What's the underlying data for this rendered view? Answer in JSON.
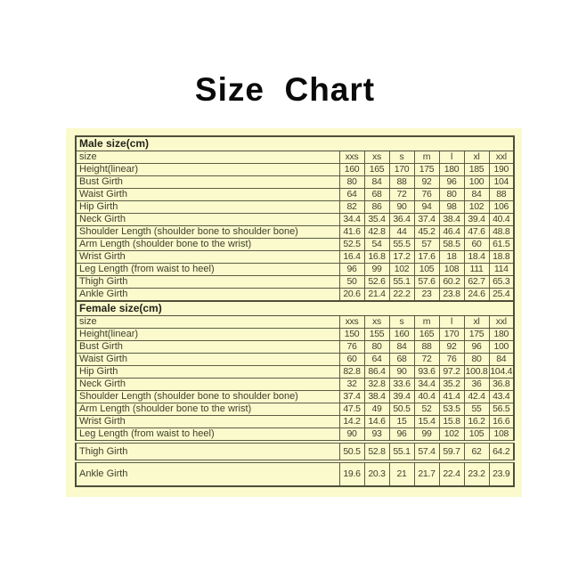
{
  "title": "Size  Chart",
  "colors": {
    "page_background": "#ffffff",
    "table_background": "#fafacd",
    "border": "#5c5c45",
    "text": "#40402c",
    "title_text": "#0a0a0a"
  },
  "chart_data": [
    {
      "type": "table",
      "title": "Male size(cm)",
      "size_column_label": "size",
      "columns": [
        "xxs",
        "xs",
        "s",
        "m",
        "l",
        "xl",
        "xxl"
      ],
      "rows": [
        {
          "label": "Height(linear)",
          "values": [
            "160",
            "165",
            "170",
            "175",
            "180",
            "185",
            "190"
          ]
        },
        {
          "label": "Bust Girth",
          "values": [
            "80",
            "84",
            "88",
            "92",
            "96",
            "100",
            "104"
          ]
        },
        {
          "label": "Waist Girth",
          "values": [
            "64",
            "68",
            "72",
            "76",
            "80",
            "84",
            "88"
          ]
        },
        {
          "label": "Hip Girth",
          "values": [
            "82",
            "86",
            "90",
            "94",
            "98",
            "102",
            "106"
          ]
        },
        {
          "label": "Neck Girth",
          "values": [
            "34.4",
            "35.4",
            "36.4",
            "37.4",
            "38.4",
            "39.4",
            "40.4"
          ]
        },
        {
          "label": "Shoulder Length (shoulder bone to shoulder bone)",
          "values": [
            "41.6",
            "42.8",
            "44",
            "45.2",
            "46.4",
            "47.6",
            "48.8"
          ]
        },
        {
          "label": "Arm Length (shoulder bone to the wrist)",
          "values": [
            "52.5",
            "54",
            "55.5",
            "57",
            "58.5",
            "60",
            "61.5"
          ]
        },
        {
          "label": "Wrist Girth",
          "values": [
            "16.4",
            "16.8",
            "17.2",
            "17.6",
            "18",
            "18.4",
            "18.8"
          ]
        },
        {
          "label": "Leg Length (from waist to heel)",
          "values": [
            "96",
            "99",
            "102",
            "105",
            "108",
            "111",
            "114"
          ]
        },
        {
          "label": "Thigh Girth",
          "values": [
            "50",
            "52.6",
            "55.1",
            "57.6",
            "60.2",
            "62.7",
            "65.3"
          ]
        },
        {
          "label": "Ankle Girth",
          "values": [
            "20.6",
            "21.4",
            "22.2",
            "23",
            "23.8",
            "24.6",
            "25.4"
          ]
        }
      ]
    },
    {
      "type": "table",
      "title": "Female size(cm)",
      "size_column_label": "size",
      "columns": [
        "xxs",
        "xs",
        "s",
        "m",
        "l",
        "xl",
        "xxl"
      ],
      "rows": [
        {
          "label": "Height(linear)",
          "values": [
            "150",
            "155",
            "160",
            "165",
            "170",
            "175",
            "180"
          ]
        },
        {
          "label": "Bust Girth",
          "values": [
            "76",
            "80",
            "84",
            "88",
            "92",
            "96",
            "100"
          ]
        },
        {
          "label": "Waist Girth",
          "values": [
            "60",
            "64",
            "68",
            "72",
            "76",
            "80",
            "84"
          ]
        },
        {
          "label": "Hip Girth",
          "values": [
            "82.8",
            "86.4",
            "90",
            "93.6",
            "97.2",
            "100.8",
            "104.4"
          ]
        },
        {
          "label": "Neck Girth",
          "values": [
            "32",
            "32.8",
            "33.6",
            "34.4",
            "35.2",
            "36",
            "36.8"
          ]
        },
        {
          "label": "Shoulder Length (shoulder bone to shoulder bone)",
          "values": [
            "37.4",
            "38.4",
            "39.4",
            "40.4",
            "41.4",
            "42.4",
            "43.4"
          ]
        },
        {
          "label": "Arm Length (shoulder bone to the wrist)",
          "values": [
            "47.5",
            "49",
            "50.5",
            "52",
            "53.5",
            "55",
            "56.5"
          ]
        },
        {
          "label": "Wrist Girth",
          "values": [
            "14.2",
            "14.6",
            "15",
            "15.4",
            "15.8",
            "16.2",
            "16.6"
          ]
        },
        {
          "label": "Leg Length (from waist to heel)",
          "values": [
            "90",
            "93",
            "96",
            "99",
            "102",
            "105",
            "108"
          ]
        },
        {
          "label": "Thigh Girth",
          "values": [
            "50.5",
            "52.8",
            "55.1",
            "57.4",
            "59.7",
            "62",
            "64.2"
          ]
        },
        {
          "label": "Ankle Girth",
          "values": [
            "19.6",
            "20.3",
            "21",
            "21.7",
            "22.4",
            "23.2",
            "23.9"
          ]
        }
      ]
    }
  ]
}
